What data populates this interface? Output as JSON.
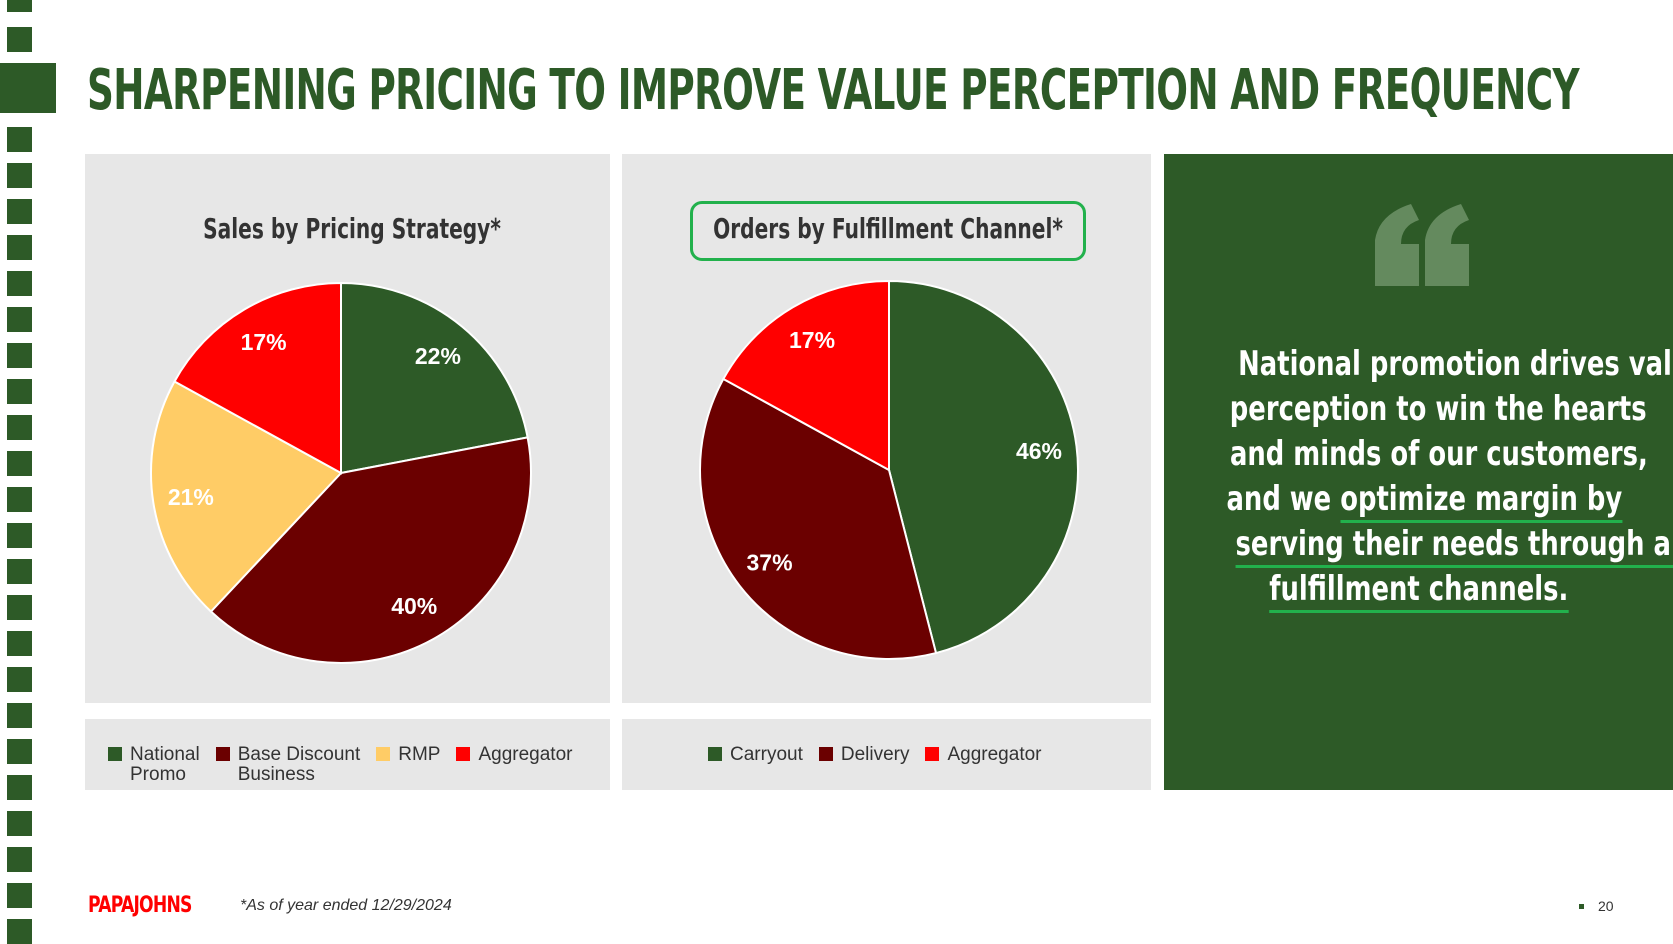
{
  "title": "SHARPENING PRICING TO IMPROVE VALUE PERCEPTION AND FREQUENCY",
  "colors": {
    "brand_green": "#2d5a27",
    "dark_red": "#6b0000",
    "red": "#ff0000",
    "yellow": "#ffcc66",
    "highlight": "#22b14c",
    "panel": "#e7e7e7"
  },
  "chart_data": [
    {
      "type": "pie",
      "title": "Sales by Pricing Strategy*",
      "categories": [
        "National Promo",
        "Base Discount Business",
        "RMP",
        "Aggregator"
      ],
      "values": [
        22,
        40,
        21,
        17
      ],
      "labels": [
        "22%",
        "40%",
        "21%",
        "17%"
      ],
      "colors": [
        "#2d5a27",
        "#6b0000",
        "#ffcc66",
        "#ff0000"
      ],
      "legend": [
        "National\nPromo",
        "Base Discount\nBusiness",
        "RMP",
        "Aggregator"
      ],
      "legend_placement": "bottom"
    },
    {
      "type": "pie",
      "title": "Orders by Fulfillment Channel*",
      "categories": [
        "Carryout",
        "Delivery",
        "Aggregator"
      ],
      "values": [
        46,
        37,
        17
      ],
      "labels": [
        "46%",
        "37%",
        "17%"
      ],
      "colors": [
        "#2d5a27",
        "#6b0000",
        "#ff0000"
      ],
      "legend": [
        "Carryout",
        "Delivery",
        "Aggregator"
      ],
      "legend_placement": "bottom"
    }
  ],
  "quote": {
    "icon": "quote-mark-icon",
    "lines": [
      [
        {
          "t": "National promotion drives value",
          "u": false
        }
      ],
      [
        {
          "t": "perception to win the hearts",
          "u": false
        }
      ],
      [
        {
          "t": "and minds of our customers,",
          "u": false
        }
      ],
      [
        {
          "t": "and we ",
          "u": false
        },
        {
          "t": "optimize margin by",
          "u": true
        }
      ],
      [
        {
          "t": "serving their needs through all",
          "u": true
        }
      ],
      [
        {
          "t": "fulfillment channels.",
          "u": true
        }
      ]
    ]
  },
  "footer": {
    "logo": "PAPAJOHNS",
    "note": "*As of year ended 12/29/2024",
    "page": "20"
  }
}
